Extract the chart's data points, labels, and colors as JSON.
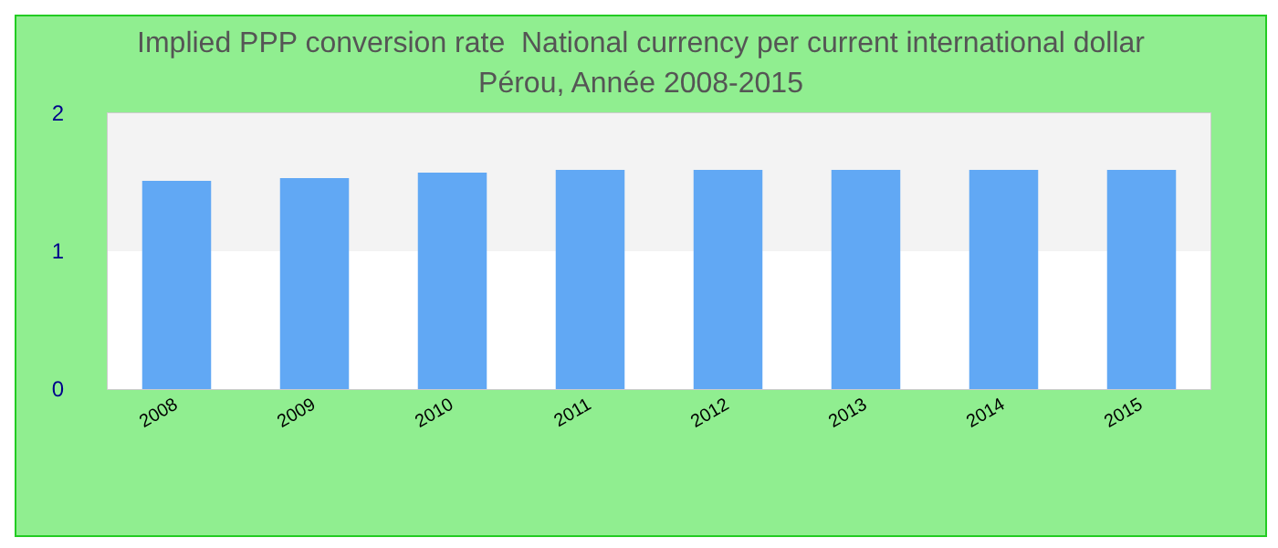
{
  "chart_data": {
    "type": "bar",
    "title": "Implied PPP conversion rate  National currency per current international dollar",
    "subtitle": "Pérou, Année 2008-2015",
    "categories": [
      "2008",
      "2009",
      "2010",
      "2011",
      "2012",
      "2013",
      "2014",
      "2015"
    ],
    "values": [
      1.51,
      1.53,
      1.57,
      1.59,
      1.59,
      1.59,
      1.59,
      1.59
    ],
    "color": "#61a8f4",
    "ylim": [
      0,
      2
    ],
    "yticks": [
      0,
      1,
      2
    ],
    "bands": [
      {
        "axis": "y",
        "from": 0,
        "to": 1,
        "color": "#ffffff"
      },
      {
        "axis": "y",
        "from": 1,
        "to": 2,
        "color": "#f3f3f3"
      }
    ]
  }
}
